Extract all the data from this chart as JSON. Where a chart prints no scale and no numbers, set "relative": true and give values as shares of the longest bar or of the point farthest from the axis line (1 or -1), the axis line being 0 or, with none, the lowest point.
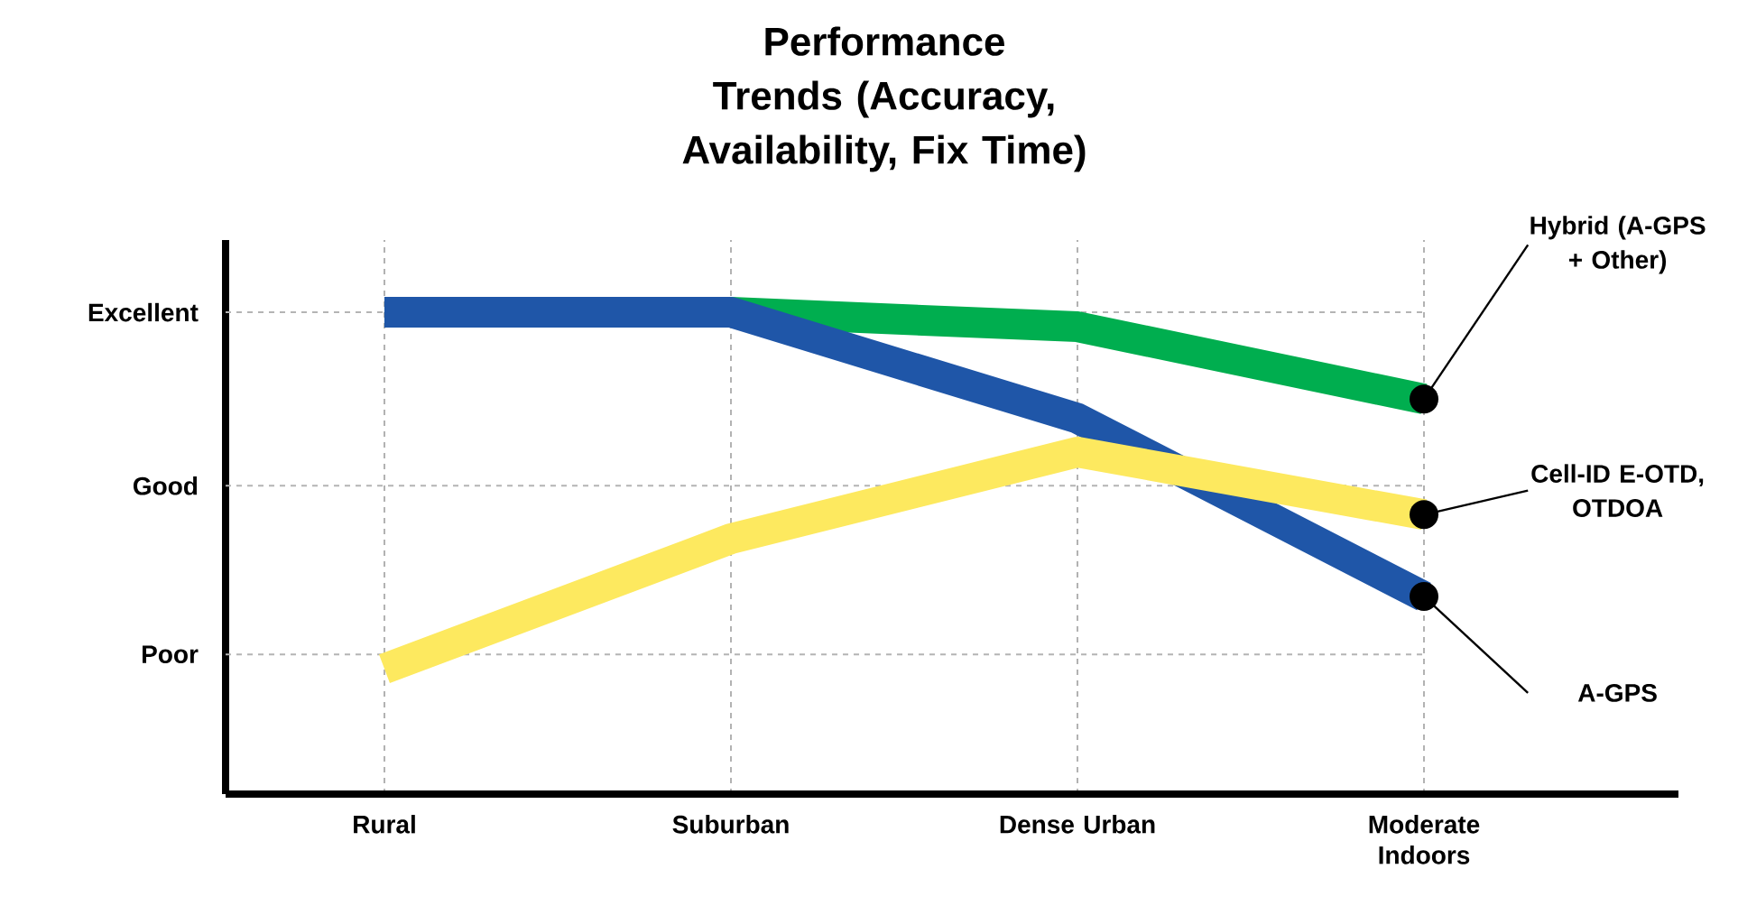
{
  "chart_data": {
    "type": "line",
    "title": "Performance Trends (Accuracy, Availability, Fix Time)",
    "categories": [
      "Rural",
      "Suburban",
      "Dense Urban",
      "Moderate Indoors"
    ],
    "relative": true,
    "grid": "x",
    "ref_lines": [
      {
        "axis": "y",
        "value": 0.29,
        "label": "Poor",
        "color": "#b4b4b4",
        "line_style": "dashed"
      },
      {
        "axis": "y",
        "value": 0.64,
        "label": "Good",
        "color": "#b4b4b4",
        "line_style": "dashed"
      },
      {
        "axis": "y",
        "value": 1.0,
        "label": "Excellent",
        "color": "#b4b4b4",
        "line_style": "dashed"
      }
    ],
    "series": [
      {
        "name": "Hybrid (A-GPS + Other)",
        "color": "#00ae4f",
        "values": [
          1,
          1,
          0.97,
          0.82
        ]
      },
      {
        "name": "A-GPS",
        "color": "#1f56a8",
        "values": [
          1,
          1,
          0.78,
          0.41
        ]
      },
      {
        "name": "Cell-ID E-OTD, OTDOA",
        "color": "#fde95f",
        "values": [
          0.26,
          0.53,
          0.71,
          0.58
        ]
      }
    ]
  }
}
